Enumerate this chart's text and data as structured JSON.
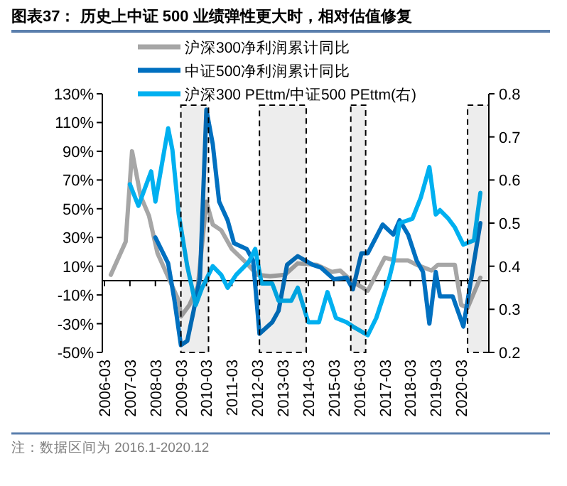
{
  "chart_data": {
    "type": "line",
    "title": "图表37：  历史上中证 500 业绩弹性更大时，相对估值修复",
    "annotations": [
      "注：数据区间为 2016.1-2020.12"
    ],
    "xlim": [
      "2006-02",
      "2021-04"
    ],
    "xticks": [
      "2006-03",
      "2007-03",
      "2008-03",
      "2009-03",
      "2010-03",
      "2011-03",
      "2012-03",
      "2013-03",
      "2014-03",
      "2015-03",
      "2016-03",
      "2017-03",
      "2018-03",
      "2019-03",
      "2020-03"
    ],
    "ylim": [
      -50,
      130
    ],
    "yticks": [
      {
        "value": -50,
        "label": "-50%"
      },
      {
        "value": -30,
        "label": "-30%"
      },
      {
        "value": -10,
        "label": "-10%"
      },
      {
        "value": 10,
        "label": "10%"
      },
      {
        "value": 30,
        "label": "30%"
      },
      {
        "value": 50,
        "label": "50%"
      },
      {
        "value": 70,
        "label": "70%"
      },
      {
        "value": 90,
        "label": "90%"
      },
      {
        "value": 110,
        "label": "110%"
      },
      {
        "value": 130,
        "label": "130%"
      }
    ],
    "y2lim": [
      0.2,
      0.8
    ],
    "y2ticks": [
      0.2,
      0.3,
      0.4,
      0.5,
      0.6,
      0.7,
      0.8
    ],
    "legend": "top",
    "grid": false,
    "marker": "none",
    "line_style": "solid",
    "bands": [
      {
        "axis": "x",
        "from": "2009-03",
        "to": "2010-04",
        "color": "#000000"
      },
      {
        "axis": "x",
        "from": "2012-04",
        "to": "2014-02",
        "color": "#000000"
      },
      {
        "axis": "x",
        "from": "2015-11",
        "to": "2016-06",
        "color": "#000000"
      },
      {
        "axis": "x",
        "from": "2020-06",
        "to": "2021-04",
        "color": "#000000"
      }
    ],
    "series": [
      {
        "name": "沪深300净利润累计同比",
        "color": "#a6a6a6",
        "x": [
          "2006-06",
          "2007-01",
          "2007-04",
          "2007-08",
          "2007-12",
          "2008-04",
          "2009-02",
          "2009-03",
          "2009-07",
          "2009-11",
          "2010-03",
          "2010-06",
          "2010-10",
          "2011-03",
          "2011-10",
          "2012-03",
          "2012-09",
          "2013-04",
          "2013-10",
          "2014-07",
          "2015-02",
          "2015-06",
          "2015-12",
          "2016-07",
          "2017-03",
          "2017-08",
          "2018-02",
          "2018-06",
          "2019-01",
          "2019-04",
          "2019-12",
          "2020-03",
          "2020-06",
          "2020-12"
        ],
        "values": [
          4,
          27,
          90,
          59,
          45,
          19,
          -14,
          -25,
          -17,
          -4,
          55,
          39,
          35,
          22,
          12,
          4,
          3,
          4,
          12,
          11,
          6,
          7,
          -1,
          -7,
          16,
          14,
          14,
          11,
          7,
          11,
          11,
          -17,
          -19,
          2
        ]
      },
      {
        "name": "中证500净利润累计同比",
        "color": "#0070c0",
        "x": [
          "2008-03",
          "2008-09",
          "2008-12",
          "2009-03",
          "2009-06",
          "2009-09",
          "2009-12",
          "2010-03",
          "2010-06",
          "2010-09",
          "2011-01",
          "2011-04",
          "2011-10",
          "2012-01",
          "2012-04",
          "2012-10",
          "2013-01",
          "2013-05",
          "2013-10",
          "2014-05",
          "2014-09",
          "2015-03",
          "2015-09",
          "2015-12",
          "2016-04",
          "2016-07",
          "2017-02",
          "2017-07",
          "2017-10",
          "2018-02",
          "2018-06",
          "2018-09",
          "2018-12",
          "2019-03",
          "2019-05",
          "2019-11",
          "2020-04",
          "2020-12"
        ],
        "values": [
          30,
          12,
          -14,
          -45,
          -42,
          -21,
          2,
          119,
          95,
          55,
          42,
          26,
          22,
          14,
          -37,
          -29,
          -21,
          11,
          17,
          11,
          9,
          1,
          2,
          -6,
          19,
          19,
          39,
          32,
          42,
          32,
          14,
          6,
          -30,
          6,
          -11,
          -11,
          -32,
          40
        ]
      },
      {
        "name": "沪深300 PEttm/中证500 PEttm(右)",
        "color": "#00b0f0",
        "axis": "y2",
        "x": [
          "2007-03",
          "2007-07",
          "2008-01",
          "2008-03",
          "2008-09",
          "2008-11",
          "2009-02",
          "2009-06",
          "2009-10",
          "2010-01",
          "2010-06",
          "2010-10",
          "2011-01",
          "2011-05",
          "2011-11",
          "2012-02",
          "2012-05",
          "2012-10",
          "2013-01",
          "2013-07",
          "2013-10",
          "2014-03",
          "2014-08",
          "2014-12",
          "2015-04",
          "2015-09",
          "2015-12",
          "2016-07",
          "2016-11",
          "2017-05",
          "2017-07",
          "2017-10",
          "2018-04",
          "2018-08",
          "2018-12",
          "2019-03",
          "2019-05",
          "2019-09",
          "2019-12",
          "2020-04",
          "2020-09",
          "2020-12"
        ],
        "values": [
          0.59,
          0.54,
          0.62,
          0.55,
          0.72,
          0.67,
          0.52,
          0.4,
          0.31,
          0.35,
          0.4,
          0.38,
          0.35,
          0.38,
          0.41,
          0.44,
          0.36,
          0.36,
          0.32,
          0.32,
          0.35,
          0.27,
          0.27,
          0.34,
          0.28,
          0.27,
          0.26,
          0.24,
          0.28,
          0.37,
          0.41,
          0.5,
          0.51,
          0.56,
          0.63,
          0.52,
          0.53,
          0.51,
          0.49,
          0.45,
          0.46,
          0.57
        ]
      }
    ]
  }
}
